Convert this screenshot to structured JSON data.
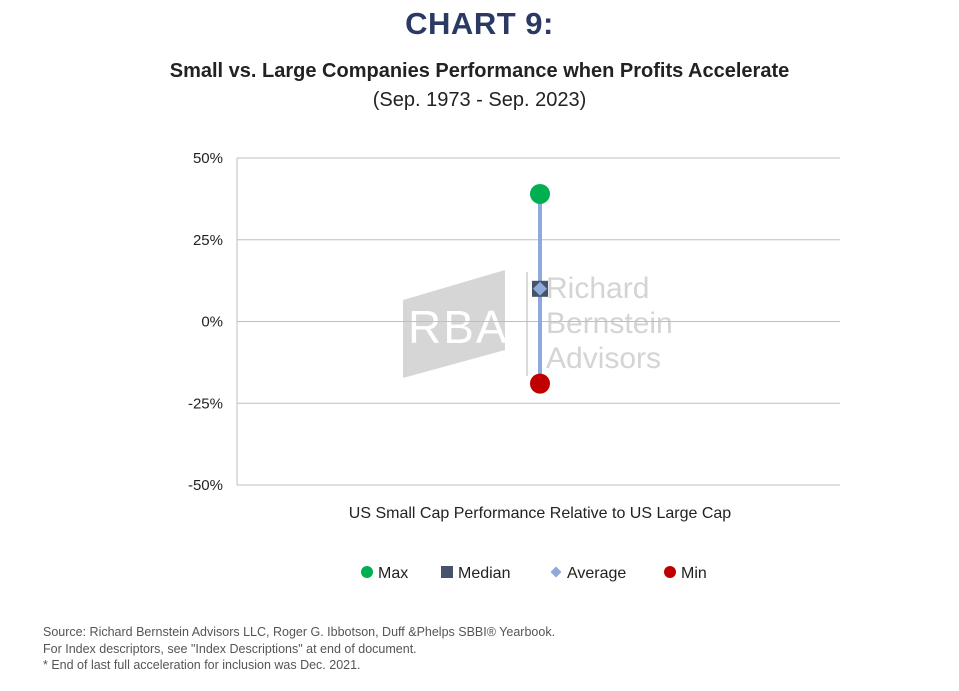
{
  "header": {
    "chart_number": "CHART 9:",
    "title": "Small vs. Large Companies Performance when Profits Accelerate",
    "subtitle": "(Sep. 1973 -  Sep. 2023)"
  },
  "watermark": {
    "logo_text": "RBA",
    "name_lines": [
      "Richard",
      "Bernstein",
      "Advisors"
    ]
  },
  "chart_data": {
    "type": "scatter",
    "title": "Small vs. Large Companies Performance when Profits Accelerate",
    "subtitle": "(Sep. 1973 -  Sep. 2023)",
    "xlabel": "US Small Cap Performance Relative to US Large Cap",
    "ylabel": "",
    "ylim": [
      -50,
      50
    ],
    "yticks": [
      50,
      25,
      0,
      -25,
      -50
    ],
    "ytick_labels": [
      "50%",
      "25%",
      "0%",
      "-25%",
      "-50%"
    ],
    "grid": true,
    "legend_position": "bottom",
    "range_line": {
      "from": 39,
      "to": -19,
      "color": "#8ea9db"
    },
    "series": [
      {
        "name": "Max",
        "value": 39,
        "marker": "circle",
        "color": "#00b050"
      },
      {
        "name": "Median",
        "value": 10,
        "marker": "square",
        "color": "#44546a"
      },
      {
        "name": "Average",
        "value": 10,
        "marker": "diamond",
        "color": "#8ea9db"
      },
      {
        "name": "Min",
        "value": -19,
        "marker": "circle",
        "color": "#c00000"
      }
    ]
  },
  "footnotes": [
    "Source: Richard Bernstein Advisors LLC, Roger G. Ibbotson, Duff &Phelps SBBI® Yearbook.",
    "For Index descriptors, see \"Index Descriptions\" at end of document.",
    "* End of last full acceleration for inclusion was Dec. 2021."
  ]
}
